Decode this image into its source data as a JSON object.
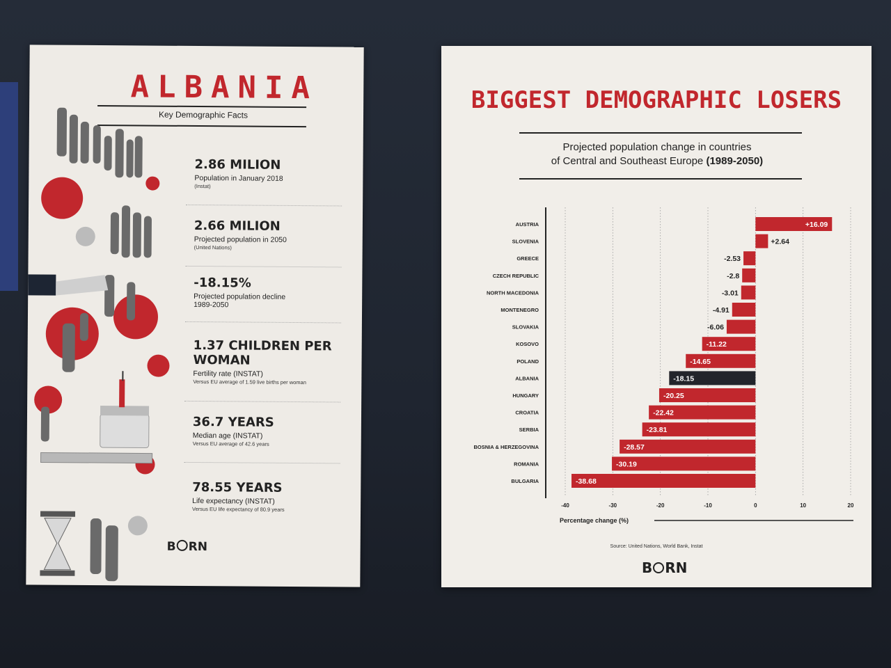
{
  "left_page": {
    "title": "ALBANIA",
    "subtitle": "Key Demographic Facts",
    "facts": [
      {
        "value": "2.86 MILION",
        "desc": "Population in January 2018",
        "note": "(Instat)"
      },
      {
        "value": "2.66 MILION",
        "desc": "Projected population in 2050",
        "note": "(United Nations)"
      },
      {
        "value": "-18.15%",
        "desc": "Projected population decline",
        "note": "1989-2050"
      },
      {
        "value": "1.37 CHILDREN PER WOMAN",
        "desc": "Fertility rate (INSTAT)",
        "note": "Versus EU average of 1.59 live births per woman"
      },
      {
        "value": "36.7 YEARS",
        "desc": "Median age (INSTAT)",
        "note": "Versus EU average of 42.6 years"
      },
      {
        "value": "78.55 YEARS",
        "desc": "Life expectancy (INSTAT)",
        "note": "Versus EU life expectancy of 80.9 years"
      }
    ],
    "logo": {
      "left": "B",
      "right": "RN"
    }
  },
  "right_page": {
    "title": "BIGGEST DEMOGRAPHIC LOSERS",
    "subtitle_line1": "Projected population change in countries",
    "subtitle_line2": "of Central and Southeast Europe",
    "subtitle_years": "(1989-2050)",
    "source": "Source: United Nations, World Bank, Instat",
    "logo": {
      "left": "B",
      "right": "RN"
    }
  },
  "colors": {
    "accent": "#c1272d",
    "highlight": "#23252b",
    "paper": "#f1eee9",
    "ink": "#222222"
  },
  "chart_data": {
    "type": "bar",
    "orientation": "horizontal",
    "title": "BIGGEST DEMOGRAPHIC LOSERS",
    "subtitle": "Projected population change in countries of Central and Southeast Europe (1989-2050)",
    "xlabel": "Percentage change (%)",
    "xlim": [
      -40,
      20
    ],
    "xticks": [
      -40,
      -30,
      -20,
      -10,
      0,
      10,
      20
    ],
    "grid": "vertical dotted",
    "categories": [
      "AUSTRIA",
      "SLOVENIA",
      "GREECE",
      "CZECH REPUBLIC",
      "NORTH MACEDONIA",
      "MONTENEGRO",
      "SLOVAKIA",
      "KOSOVO",
      "POLAND",
      "ALBANIA",
      "HUNGARY",
      "CROATIA",
      "SERBIA",
      "BOSNIA & HERZEGOVINA",
      "ROMANIA",
      "BULGARIA"
    ],
    "values": [
      16.09,
      2.64,
      -2.53,
      -2.8,
      -3.01,
      -4.91,
      -6.06,
      -11.22,
      -14.65,
      -18.15,
      -20.25,
      -22.42,
      -23.81,
      -28.57,
      -30.19,
      -38.68
    ],
    "labels": [
      "+16.09",
      "+2.64",
      "-2.53",
      "-2.8",
      "-3.01",
      "-4.91",
      "-6.06",
      "-11.22",
      "-14.65",
      "-18.15",
      "-20.25",
      "-22.42",
      "-23.81",
      "-28.57",
      "-30.19",
      "-38.68"
    ],
    "highlight": "ALBANIA",
    "source": "Source: United Nations, World Bank, Instat"
  }
}
